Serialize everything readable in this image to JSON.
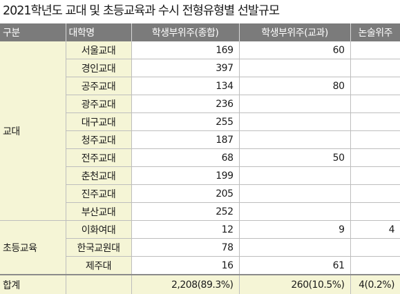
{
  "title": "2021학년도 교대 및 초등교육과 수시 전형유형별 선발규모",
  "headers": [
    "구분",
    "대학명",
    "학생부위주(종합)",
    "학생부위주(교과)",
    "논술위주"
  ],
  "groups": [
    {
      "label": "교대",
      "rows": [
        {
          "school": "서울교대",
          "comprehensive": "169",
          "subject": "60",
          "essay": ""
        },
        {
          "school": "경인교대",
          "comprehensive": "397",
          "subject": "",
          "essay": ""
        },
        {
          "school": "공주교대",
          "comprehensive": "134",
          "subject": "80",
          "essay": ""
        },
        {
          "school": "광주교대",
          "comprehensive": "236",
          "subject": "",
          "essay": ""
        },
        {
          "school": "대구교대",
          "comprehensive": "255",
          "subject": "",
          "essay": ""
        },
        {
          "school": "청주교대",
          "comprehensive": "187",
          "subject": "",
          "essay": ""
        },
        {
          "school": "전주교대",
          "comprehensive": "68",
          "subject": "50",
          "essay": ""
        },
        {
          "school": "춘천교대",
          "comprehensive": "199",
          "subject": "",
          "essay": ""
        },
        {
          "school": "진주교대",
          "comprehensive": "205",
          "subject": "",
          "essay": ""
        },
        {
          "school": "부산교대",
          "comprehensive": "252",
          "subject": "",
          "essay": ""
        }
      ]
    },
    {
      "label": "초등교육",
      "rows": [
        {
          "school": "이화여대",
          "comprehensive": "12",
          "subject": "9",
          "essay": "4"
        },
        {
          "school": "한국교원대",
          "comprehensive": "78",
          "subject": "",
          "essay": ""
        },
        {
          "school": "제주대",
          "comprehensive": "16",
          "subject": "61",
          "essay": ""
        }
      ]
    }
  ],
  "total": {
    "label": "합계",
    "comprehensive": "2,208(89.3%)",
    "subject": "260(10.5%)",
    "essay": "4(0.2%)"
  },
  "colors": {
    "header_bg": "#7b7b7b",
    "cell_tint": "#f5f5d6",
    "header_text": "#ffffff"
  }
}
